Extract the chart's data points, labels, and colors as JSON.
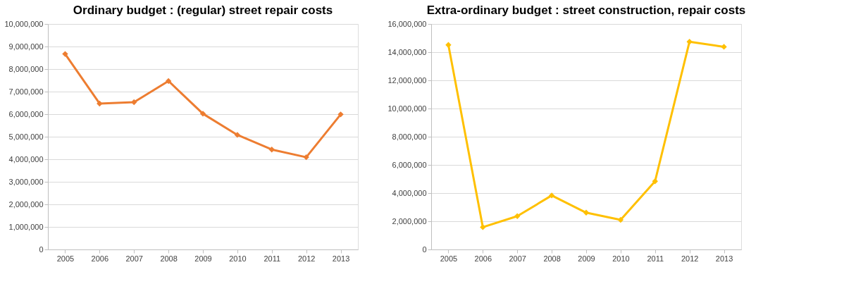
{
  "chart_data": [
    {
      "type": "line",
      "title": "Ordinary budget : (regular) street repair costs",
      "categories": [
        "2005",
        "2006",
        "2007",
        "2008",
        "2009",
        "2010",
        "2011",
        "2012",
        "2013"
      ],
      "series": [
        {
          "color": "#ed7d31",
          "values": [
            8670000,
            6470000,
            6530000,
            7470000,
            6020000,
            5080000,
            4430000,
            4090000,
            5990000
          ]
        }
      ],
      "ylim": [
        0,
        10000000
      ],
      "yticks": [
        {
          "value": 0,
          "label": "0"
        },
        {
          "value": 1000000,
          "label": "1,000,000"
        },
        {
          "value": 2000000,
          "label": "2,000,000"
        },
        {
          "value": 3000000,
          "label": "3,000,000"
        },
        {
          "value": 4000000,
          "label": "4,000,000"
        },
        {
          "value": 5000000,
          "label": "5,000,000"
        },
        {
          "value": 6000000,
          "label": "6,000,000"
        },
        {
          "value": 7000000,
          "label": "7,000,000"
        },
        {
          "value": 8000000,
          "label": "8,000,000"
        },
        {
          "value": 9000000,
          "label": "9,000,000"
        },
        {
          "value": 10000000,
          "label": "10,000,000"
        }
      ],
      "grid": "y",
      "legend": false,
      "marker": "diamond",
      "line_style": "solid"
    },
    {
      "type": "line",
      "title": "Extra-ordinary budget : street construction, repair costs",
      "categories": [
        "2005",
        "2006",
        "2007",
        "2008",
        "2009",
        "2010",
        "2011",
        "2012",
        "2013"
      ],
      "series": [
        {
          "color": "#ffc000",
          "values": [
            14510000,
            1580000,
            2360000,
            3830000,
            2610000,
            2100000,
            4840000,
            14740000,
            14380000
          ]
        }
      ],
      "ylim": [
        0,
        16000000
      ],
      "yticks": [
        {
          "value": 0,
          "label": "0"
        },
        {
          "value": 2000000,
          "label": "2,000,000"
        },
        {
          "value": 4000000,
          "label": "4,000,000"
        },
        {
          "value": 6000000,
          "label": "6,000,000"
        },
        {
          "value": 8000000,
          "label": "8,000,000"
        },
        {
          "value": 10000000,
          "label": "10,000,000"
        },
        {
          "value": 12000000,
          "label": "12,000,000"
        },
        {
          "value": 14000000,
          "label": "14,000,000"
        },
        {
          "value": 16000000,
          "label": "16,000,000"
        }
      ],
      "grid": "y",
      "legend": false,
      "marker": "diamond",
      "line_style": "solid"
    }
  ]
}
